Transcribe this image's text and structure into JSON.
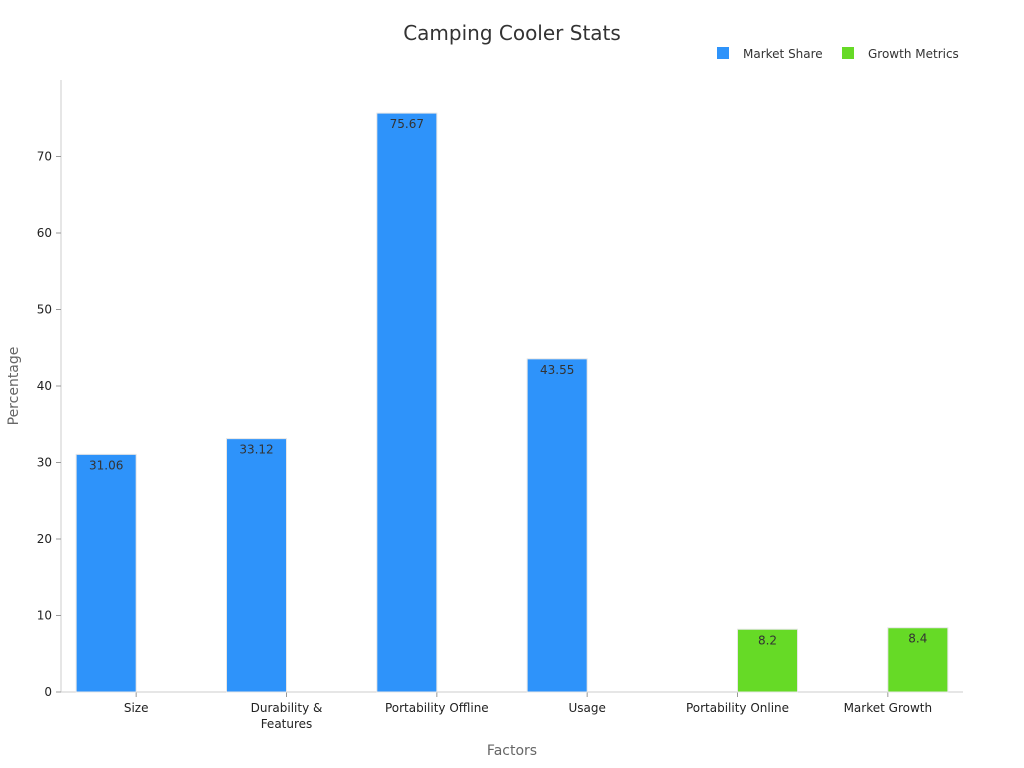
{
  "chart_data": {
    "type": "bar",
    "title": "Camping Cooler Stats",
    "xlabel": "Factors",
    "ylabel": "Percentage",
    "ylim": [
      0,
      80
    ],
    "yticks": [
      0,
      10,
      20,
      30,
      40,
      50,
      60,
      70
    ],
    "categories": [
      "Size",
      "Durability & Features",
      "Portability Offline",
      "Usage",
      "Portability Online",
      "Market Growth"
    ],
    "category_lines": [
      [
        "Size"
      ],
      [
        "Durability &",
        "Features"
      ],
      [
        "Portability Offline"
      ],
      [
        "Usage"
      ],
      [
        "Portability Online"
      ],
      [
        "Market Growth"
      ]
    ],
    "legend_position": "top-right",
    "grid": false,
    "series": [
      {
        "name": "Market Share",
        "color": "#2E93FA",
        "values": [
          31.06,
          33.12,
          75.67,
          43.55,
          null,
          null
        ]
      },
      {
        "name": "Growth Metrics",
        "color": "#66DA26",
        "values": [
          null,
          null,
          null,
          null,
          8.2,
          8.4
        ]
      }
    ]
  }
}
